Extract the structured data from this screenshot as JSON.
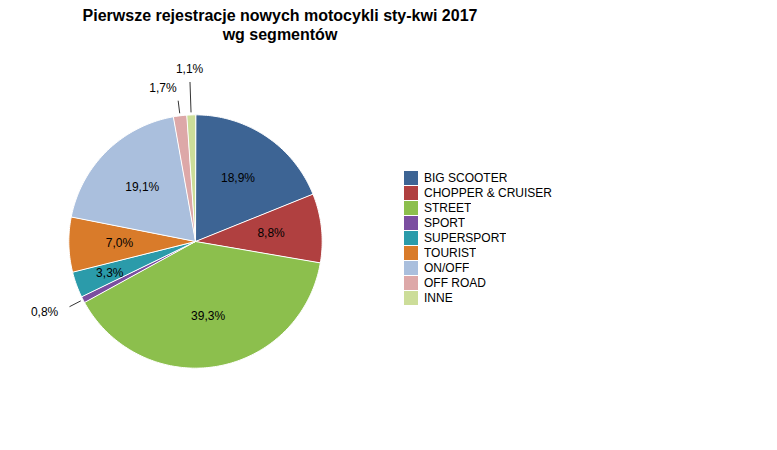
{
  "chart_data": {
    "type": "pie",
    "title": "Pierwsze rejestracje nowych motocykli sty-kwi 2017\nwg segmentów",
    "categories": [
      "BIG SCOOTER",
      "CHOPPER & CRUISER",
      "STREET",
      "SPORT",
      "SUPERSPORT",
      "TOURIST",
      "ON/OFF",
      "OFF ROAD",
      "INNE"
    ],
    "values": [
      18.9,
      8.8,
      39.3,
      0.8,
      3.3,
      7.0,
      19.1,
      1.7,
      1.1
    ],
    "value_labels": [
      "18,9%",
      "8,8%",
      "39,3%",
      "0,8%",
      "3,3%",
      "7,0%",
      "19,1%",
      "1,7%",
      "1,1%"
    ],
    "colors": [
      "#3D6494",
      "#B04040",
      "#8CBF4D",
      "#7B4EA0",
      "#2B9BAA",
      "#D97B2A",
      "#AABFDD",
      "#DDA8A8",
      "#CCDD99"
    ],
    "data_labels": true,
    "legend": "right",
    "tick_labels": false,
    "grid": false
  }
}
